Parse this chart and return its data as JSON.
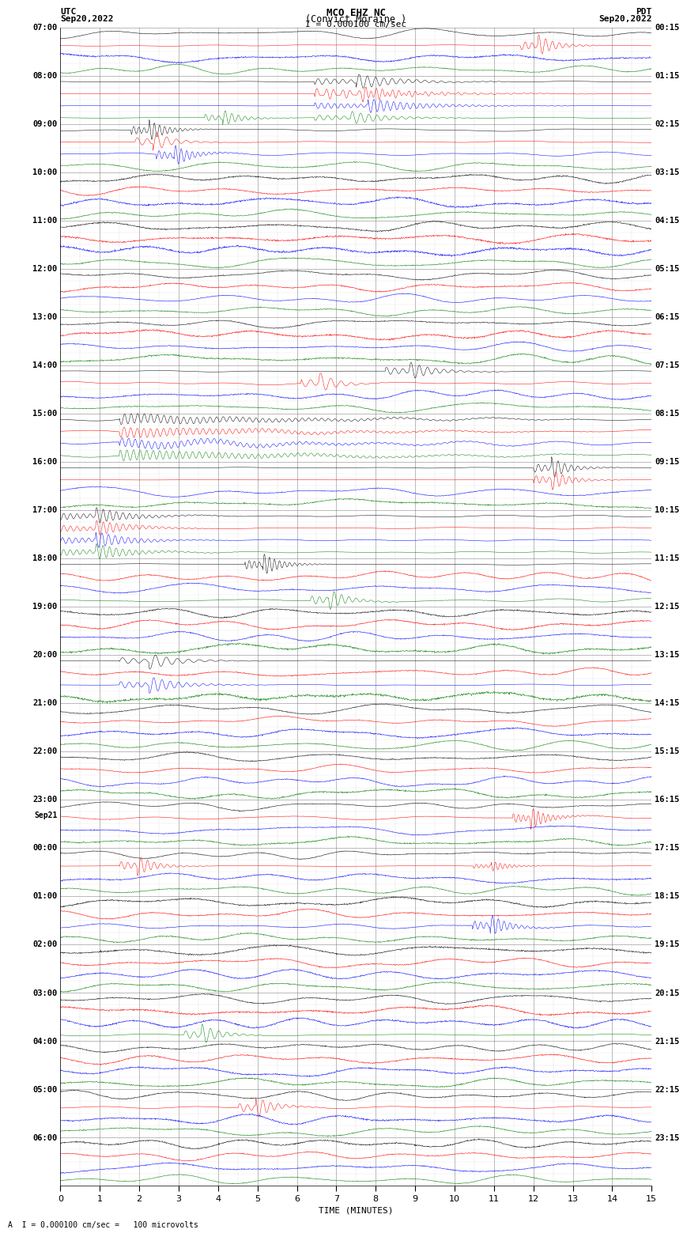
{
  "title_line1": "MCO EHZ NC",
  "title_line2": "(Convict Moraine )",
  "scale_label": "I = 0.000100 cm/sec",
  "bottom_label": "A  I = 0.000100 cm/sec =   100 microvolts",
  "xlabel": "TIME (MINUTES)",
  "left_label_top": "UTC",
  "left_label_date": "Sep20,2022",
  "right_label_top": "PDT",
  "right_label_date": "Sep20,2022",
  "trace_colors": [
    "black",
    "red",
    "blue",
    "green"
  ],
  "background_color": "#ffffff",
  "fig_width": 8.5,
  "fig_height": 16.13,
  "utc_labels": [
    [
      0,
      "07:00"
    ],
    [
      4,
      "08:00"
    ],
    [
      8,
      "09:00"
    ],
    [
      12,
      "10:00"
    ],
    [
      16,
      "11:00"
    ],
    [
      20,
      "12:00"
    ],
    [
      24,
      "13:00"
    ],
    [
      28,
      "14:00"
    ],
    [
      32,
      "15:00"
    ],
    [
      36,
      "16:00"
    ],
    [
      40,
      "17:00"
    ],
    [
      44,
      "18:00"
    ],
    [
      48,
      "19:00"
    ],
    [
      52,
      "20:00"
    ],
    [
      56,
      "21:00"
    ],
    [
      60,
      "22:00"
    ],
    [
      64,
      "23:00"
    ],
    [
      68,
      "00:00"
    ],
    [
      72,
      "01:00"
    ],
    [
      76,
      "02:00"
    ],
    [
      80,
      "03:00"
    ],
    [
      84,
      "04:00"
    ],
    [
      88,
      "05:00"
    ],
    [
      92,
      "06:00"
    ]
  ],
  "sep21_trace": 67,
  "pdt_labels": [
    [
      0,
      "00:15"
    ],
    [
      4,
      "01:15"
    ],
    [
      8,
      "02:15"
    ],
    [
      12,
      "03:15"
    ],
    [
      16,
      "04:15"
    ],
    [
      20,
      "05:15"
    ],
    [
      24,
      "06:15"
    ],
    [
      28,
      "07:15"
    ],
    [
      32,
      "08:15"
    ],
    [
      36,
      "09:15"
    ],
    [
      40,
      "10:15"
    ],
    [
      44,
      "11:15"
    ],
    [
      48,
      "12:15"
    ],
    [
      52,
      "13:15"
    ],
    [
      56,
      "14:15"
    ],
    [
      60,
      "15:15"
    ],
    [
      64,
      "16:15"
    ],
    [
      68,
      "17:15"
    ],
    [
      72,
      "18:15"
    ],
    [
      76,
      "19:15"
    ],
    [
      80,
      "20:15"
    ],
    [
      84,
      "21:15"
    ],
    [
      88,
      "22:15"
    ],
    [
      92,
      "23:15"
    ]
  ],
  "num_groups": 24,
  "traces_per_group": 4,
  "n_samples": 1800
}
